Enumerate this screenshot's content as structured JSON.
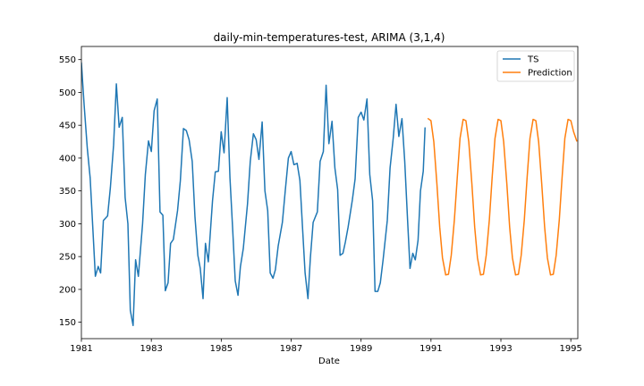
{
  "chart_data": {
    "type": "line",
    "title": "daily-min-temperatures-test, ARIMA (3,1,4)",
    "xlabel": "Date",
    "ylabel": "",
    "xlim": [
      1981,
      1995.2
    ],
    "ylim": [
      125,
      570
    ],
    "x_ticks": [
      1981,
      1983,
      1985,
      1987,
      1989,
      1991,
      1993,
      1995
    ],
    "x_tick_labels": [
      "1981",
      "1983",
      "1985",
      "1987",
      "1989",
      "1991",
      "1993",
      "1995"
    ],
    "y_ticks": [
      150,
      200,
      250,
      300,
      350,
      400,
      450,
      500,
      550
    ],
    "y_tick_labels": [
      "150",
      "200",
      "250",
      "300",
      "350",
      "400",
      "450",
      "500",
      "550"
    ],
    "grid": false,
    "legend_position": "top-right",
    "series": [
      {
        "name": "TS",
        "color": "#1f77b4",
        "points": [
          [
            1981.0,
            545
          ],
          [
            1981.08,
            480
          ],
          [
            1981.17,
            415
          ],
          [
            1981.25,
            370
          ],
          [
            1981.33,
            290
          ],
          [
            1981.4,
            220
          ],
          [
            1981.48,
            235
          ],
          [
            1981.55,
            225
          ],
          [
            1981.63,
            305
          ],
          [
            1981.75,
            312
          ],
          [
            1981.83,
            355
          ],
          [
            1981.92,
            420
          ],
          [
            1982.0,
            513
          ],
          [
            1982.08,
            447
          ],
          [
            1982.17,
            462
          ],
          [
            1982.25,
            340
          ],
          [
            1982.33,
            300
          ],
          [
            1982.4,
            168
          ],
          [
            1982.48,
            145
          ],
          [
            1982.55,
            245
          ],
          [
            1982.63,
            220
          ],
          [
            1982.75,
            300
          ],
          [
            1982.83,
            375
          ],
          [
            1982.92,
            426
          ],
          [
            1983.0,
            410
          ],
          [
            1983.08,
            472
          ],
          [
            1983.17,
            490
          ],
          [
            1983.25,
            318
          ],
          [
            1983.33,
            313
          ],
          [
            1983.4,
            198
          ],
          [
            1983.48,
            210
          ],
          [
            1983.55,
            270
          ],
          [
            1983.63,
            276
          ],
          [
            1983.75,
            320
          ],
          [
            1983.83,
            365
          ],
          [
            1983.92,
            445
          ],
          [
            1984.0,
            442
          ],
          [
            1984.08,
            428
          ],
          [
            1984.17,
            395
          ],
          [
            1984.25,
            310
          ],
          [
            1984.33,
            252
          ],
          [
            1984.4,
            232
          ],
          [
            1984.48,
            186
          ],
          [
            1984.55,
            270
          ],
          [
            1984.63,
            242
          ],
          [
            1984.75,
            335
          ],
          [
            1984.83,
            379
          ],
          [
            1984.92,
            380
          ],
          [
            1985.0,
            440
          ],
          [
            1985.08,
            408
          ],
          [
            1985.17,
            492
          ],
          [
            1985.25,
            370
          ],
          [
            1985.33,
            290
          ],
          [
            1985.4,
            213
          ],
          [
            1985.48,
            191
          ],
          [
            1985.55,
            235
          ],
          [
            1985.63,
            262
          ],
          [
            1985.75,
            330
          ],
          [
            1985.83,
            395
          ],
          [
            1985.92,
            437
          ],
          [
            1986.0,
            428
          ],
          [
            1986.08,
            398
          ],
          [
            1986.17,
            455
          ],
          [
            1986.25,
            350
          ],
          [
            1986.33,
            320
          ],
          [
            1986.4,
            225
          ],
          [
            1986.48,
            217
          ],
          [
            1986.55,
            230
          ],
          [
            1986.63,
            266
          ],
          [
            1986.75,
            302
          ],
          [
            1986.83,
            350
          ],
          [
            1986.92,
            400
          ],
          [
            1987.0,
            410
          ],
          [
            1987.08,
            390
          ],
          [
            1987.17,
            392
          ],
          [
            1987.25,
            366
          ],
          [
            1987.33,
            290
          ],
          [
            1987.4,
            225
          ],
          [
            1987.48,
            186
          ],
          [
            1987.55,
            248
          ],
          [
            1987.63,
            302
          ],
          [
            1987.75,
            318
          ],
          [
            1987.83,
            395
          ],
          [
            1987.92,
            410
          ],
          [
            1988.0,
            511
          ],
          [
            1988.08,
            422
          ],
          [
            1988.17,
            456
          ],
          [
            1988.25,
            385
          ],
          [
            1988.33,
            352
          ],
          [
            1988.4,
            252
          ],
          [
            1988.48,
            255
          ],
          [
            1988.55,
            272
          ],
          [
            1988.63,
            295
          ],
          [
            1988.75,
            336
          ],
          [
            1988.83,
            368
          ],
          [
            1988.92,
            462
          ],
          [
            1989.0,
            470
          ],
          [
            1989.08,
            458
          ],
          [
            1989.17,
            490
          ],
          [
            1989.25,
            375
          ],
          [
            1989.33,
            335
          ],
          [
            1989.4,
            197
          ],
          [
            1989.48,
            197
          ],
          [
            1989.55,
            210
          ],
          [
            1989.63,
            245
          ],
          [
            1989.75,
            305
          ],
          [
            1989.83,
            385
          ],
          [
            1989.92,
            430
          ],
          [
            1990.0,
            482
          ],
          [
            1990.08,
            433
          ],
          [
            1990.17,
            460
          ],
          [
            1990.25,
            395
          ],
          [
            1990.33,
            305
          ],
          [
            1990.4,
            232
          ],
          [
            1990.48,
            255
          ],
          [
            1990.55,
            245
          ],
          [
            1990.63,
            275
          ],
          [
            1990.7,
            350
          ],
          [
            1990.78,
            380
          ],
          [
            1990.83,
            446
          ]
        ]
      },
      {
        "name": "Prediction",
        "color": "#ff7f0e",
        "points": [
          [
            1990.92,
            460
          ],
          [
            1991.0,
            457
          ],
          [
            1991.08,
            425
          ],
          [
            1991.17,
            360
          ],
          [
            1991.25,
            295
          ],
          [
            1991.33,
            248
          ],
          [
            1991.42,
            222
          ],
          [
            1991.5,
            223
          ],
          [
            1991.58,
            252
          ],
          [
            1991.67,
            306
          ],
          [
            1991.75,
            370
          ],
          [
            1991.83,
            430
          ],
          [
            1991.92,
            459
          ],
          [
            1992.0,
            457
          ],
          [
            1992.08,
            425
          ],
          [
            1992.17,
            360
          ],
          [
            1992.25,
            295
          ],
          [
            1992.33,
            248
          ],
          [
            1992.42,
            222
          ],
          [
            1992.5,
            223
          ],
          [
            1992.58,
            252
          ],
          [
            1992.67,
            306
          ],
          [
            1992.75,
            370
          ],
          [
            1992.83,
            430
          ],
          [
            1992.92,
            459
          ],
          [
            1993.0,
            457
          ],
          [
            1993.08,
            425
          ],
          [
            1993.17,
            360
          ],
          [
            1993.25,
            295
          ],
          [
            1993.33,
            248
          ],
          [
            1993.42,
            222
          ],
          [
            1993.5,
            223
          ],
          [
            1993.58,
            252
          ],
          [
            1993.67,
            306
          ],
          [
            1993.75,
            370
          ],
          [
            1993.83,
            430
          ],
          [
            1993.92,
            459
          ],
          [
            1994.0,
            457
          ],
          [
            1994.08,
            425
          ],
          [
            1994.17,
            360
          ],
          [
            1994.25,
            295
          ],
          [
            1994.33,
            248
          ],
          [
            1994.42,
            222
          ],
          [
            1994.5,
            223
          ],
          [
            1994.58,
            252
          ],
          [
            1994.67,
            306
          ],
          [
            1994.75,
            370
          ],
          [
            1994.83,
            430
          ],
          [
            1994.92,
            459
          ],
          [
            1995.0,
            457
          ],
          [
            1995.08,
            440
          ],
          [
            1995.17,
            426
          ]
        ]
      }
    ]
  }
}
